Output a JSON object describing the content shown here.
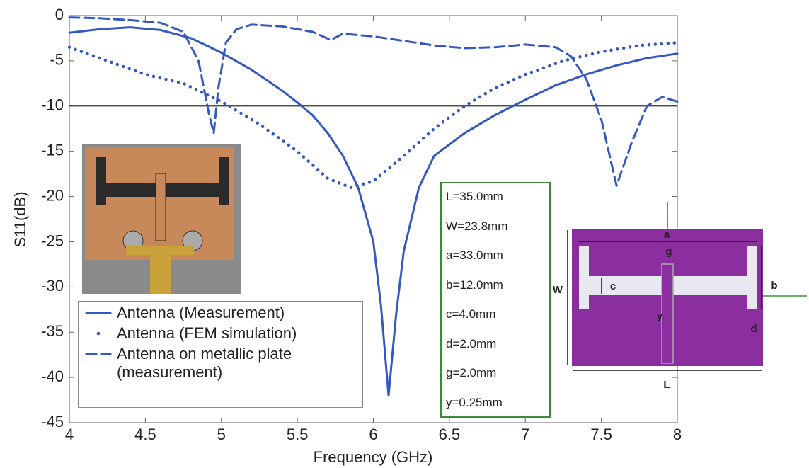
{
  "chart_data": {
    "type": "line",
    "xlabel": "Frequency (GHz)",
    "ylabel": "S11(dB)",
    "xlim": [
      4,
      8
    ],
    "ylim": [
      -45,
      0
    ],
    "xticks": [
      4,
      4.5,
      5,
      5.5,
      6,
      6.5,
      7,
      7.5,
      8
    ],
    "yticks": [
      0,
      -5,
      -10,
      -15,
      -20,
      -25,
      -30,
      -35,
      -40,
      -45
    ],
    "hline": -10,
    "series": [
      {
        "name": "Antenna (Measurement)",
        "color": "#3558c0",
        "style": "solid",
        "x": [
          4,
          4.2,
          4.4,
          4.6,
          4.8,
          5.0,
          5.2,
          5.4,
          5.5,
          5.6,
          5.7,
          5.8,
          5.9,
          6.0,
          6.05,
          6.1,
          6.15,
          6.2,
          6.3,
          6.4,
          6.6,
          6.8,
          7.0,
          7.2,
          7.4,
          7.6,
          7.8,
          8.0
        ],
        "values": [
          -1.9,
          -1.5,
          -1.3,
          -1.6,
          -2.5,
          -4.1,
          -6,
          -8.3,
          -9.6,
          -11,
          -13,
          -15.5,
          -19,
          -25,
          -32,
          -42,
          -33,
          -26,
          -19,
          -15.5,
          -13,
          -11,
          -9.3,
          -7.7,
          -6.5,
          -5.5,
          -4.7,
          -4.2
        ]
      },
      {
        "name": "Antenna (FEM simulation)",
        "color": "#3558c0",
        "style": "dotted",
        "x": [
          4,
          4.25,
          4.5,
          4.75,
          5.0,
          5.25,
          5.5,
          5.7,
          5.85,
          6.0,
          6.2,
          6.4,
          6.6,
          6.8,
          7.0,
          7.25,
          7.5,
          7.75,
          8
        ],
        "values": [
          -3.5,
          -5,
          -6.5,
          -7.5,
          -9.5,
          -12,
          -15,
          -18,
          -19,
          -18.3,
          -15.5,
          -12.5,
          -10,
          -8,
          -6.5,
          -5,
          -4,
          -3.3,
          -3
        ]
      },
      {
        "name": "Antenna on metallic plate\n(measurement)",
        "color": "#3558c0",
        "style": "dashed",
        "x": [
          4,
          4.2,
          4.4,
          4.6,
          4.75,
          4.85,
          4.92,
          4.95,
          4.98,
          5.03,
          5.1,
          5.2,
          5.4,
          5.6,
          5.72,
          5.8,
          6.0,
          6.2,
          6.4,
          6.6,
          6.8,
          7.0,
          7.2,
          7.3,
          7.4,
          7.5,
          7.6,
          7.7,
          7.8,
          7.9,
          8
        ],
        "values": [
          -0.2,
          -0.3,
          -0.5,
          -0.8,
          -1.8,
          -5,
          -11,
          -13,
          -8,
          -3,
          -1.5,
          -1,
          -1.2,
          -1.8,
          -2.7,
          -2,
          -2.3,
          -2.8,
          -3.3,
          -3.6,
          -3.5,
          -3.2,
          -3.5,
          -4.5,
          -7,
          -11.5,
          -18.8,
          -14,
          -10,
          -9,
          -9.5
        ]
      }
    ],
    "annotations": [
      "L=35.0mm",
      "W=23.8mm",
      "a=33.0mm",
      "b=12.0mm",
      "c=4.0mm",
      "d=2.0mm",
      "g=2.0mm",
      "y=0.25mm"
    ],
    "inset_labels": [
      "a",
      "g",
      "b",
      "c",
      "W",
      "d",
      "y",
      "L"
    ]
  }
}
